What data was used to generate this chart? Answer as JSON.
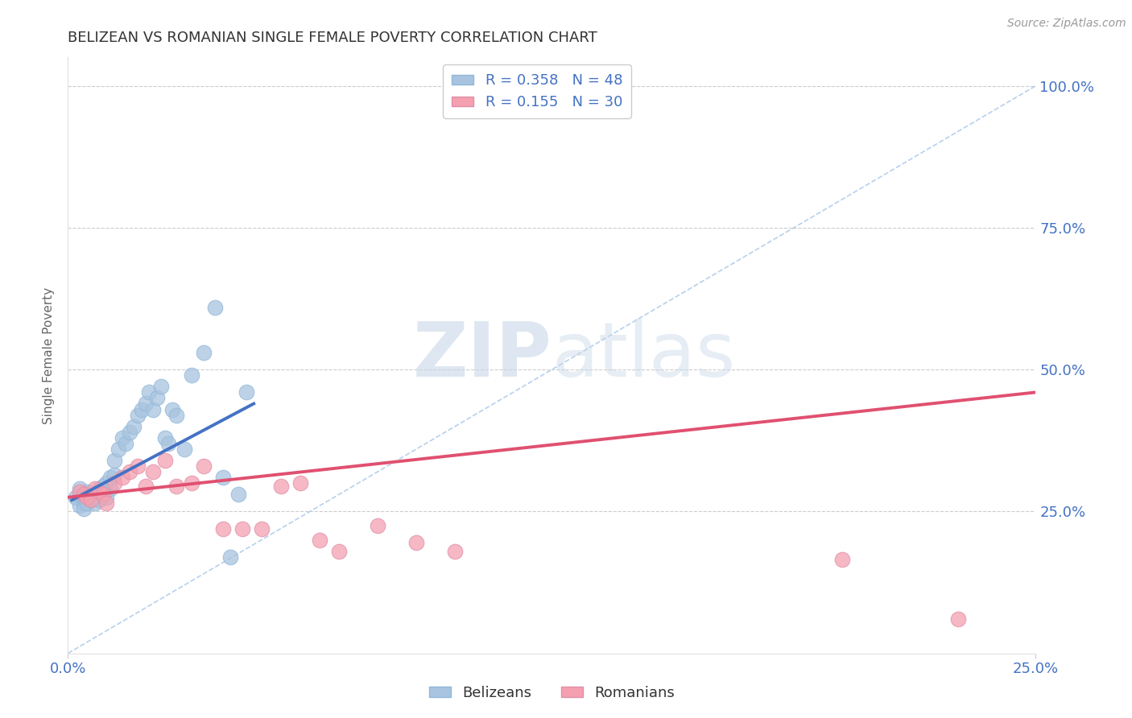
{
  "title": "BELIZEAN VS ROMANIAN SINGLE FEMALE POVERTY CORRELATION CHART",
  "source": "Source: ZipAtlas.com",
  "ylabel": "Single Female Poverty",
  "xlim": [
    0.0,
    0.25
  ],
  "ylim": [
    0.0,
    1.05
  ],
  "xtick_labels": [
    "0.0%",
    "25.0%"
  ],
  "xtick_positions": [
    0.0,
    0.25
  ],
  "ytick_positions": [
    0.25,
    0.5,
    0.75,
    1.0
  ],
  "right_ytick_labels": [
    "25.0%",
    "50.0%",
    "75.0%",
    "100.0%"
  ],
  "belize_color": "#a8c4e0",
  "romanian_color": "#f4a0b0",
  "belize_line_color": "#4472c4",
  "romanian_line_color": "#e05070",
  "reference_line_color": "#b8d0ec",
  "legend_r_belize": "R = 0.358",
  "legend_n_belize": "N = 48",
  "legend_r_romanian": "R = 0.155",
  "legend_n_romanian": "N = 30",
  "watermark_zip": "ZIP",
  "watermark_atlas": "atlas",
  "belize_scatter_x": [
    0.002,
    0.003,
    0.003,
    0.004,
    0.004,
    0.004,
    0.005,
    0.005,
    0.005,
    0.005,
    0.006,
    0.006,
    0.007,
    0.007,
    0.008,
    0.008,
    0.009,
    0.009,
    0.01,
    0.01,
    0.011,
    0.011,
    0.012,
    0.012,
    0.013,
    0.014,
    0.015,
    0.016,
    0.017,
    0.018,
    0.019,
    0.02,
    0.021,
    0.022,
    0.023,
    0.024,
    0.025,
    0.026,
    0.027,
    0.028,
    0.03,
    0.032,
    0.035,
    0.038,
    0.04,
    0.042,
    0.044,
    0.046
  ],
  "belize_scatter_y": [
    0.275,
    0.26,
    0.29,
    0.265,
    0.275,
    0.255,
    0.27,
    0.28,
    0.265,
    0.285,
    0.27,
    0.275,
    0.28,
    0.265,
    0.29,
    0.27,
    0.285,
    0.295,
    0.275,
    0.3,
    0.29,
    0.31,
    0.315,
    0.34,
    0.36,
    0.38,
    0.37,
    0.39,
    0.4,
    0.42,
    0.43,
    0.44,
    0.46,
    0.43,
    0.45,
    0.47,
    0.38,
    0.37,
    0.43,
    0.42,
    0.36,
    0.49,
    0.53,
    0.61,
    0.31,
    0.17,
    0.28,
    0.46
  ],
  "romanian_scatter_x": [
    0.003,
    0.004,
    0.005,
    0.006,
    0.007,
    0.008,
    0.009,
    0.01,
    0.012,
    0.014,
    0.016,
    0.018,
    0.02,
    0.022,
    0.025,
    0.028,
    0.032,
    0.035,
    0.04,
    0.045,
    0.05,
    0.055,
    0.06,
    0.065,
    0.07,
    0.08,
    0.09,
    0.1,
    0.2,
    0.23
  ],
  "romanian_scatter_y": [
    0.285,
    0.28,
    0.275,
    0.27,
    0.29,
    0.285,
    0.28,
    0.265,
    0.3,
    0.31,
    0.32,
    0.33,
    0.295,
    0.32,
    0.34,
    0.295,
    0.3,
    0.33,
    0.22,
    0.22,
    0.22,
    0.295,
    0.3,
    0.2,
    0.18,
    0.225,
    0.195,
    0.18,
    0.165,
    0.06
  ],
  "belize_trend_x": [
    0.001,
    0.048
  ],
  "belize_trend_y": [
    0.27,
    0.44
  ],
  "romanian_trend_x": [
    0.0,
    0.25
  ],
  "romanian_trend_y": [
    0.275,
    0.46
  ],
  "ref_line_x": [
    0.0,
    0.25
  ],
  "ref_line_y": [
    0.0,
    1.0
  ],
  "background_color": "#ffffff",
  "grid_color": "#cccccc",
  "title_color": "#333333",
  "tick_label_color": "#4472c4"
}
